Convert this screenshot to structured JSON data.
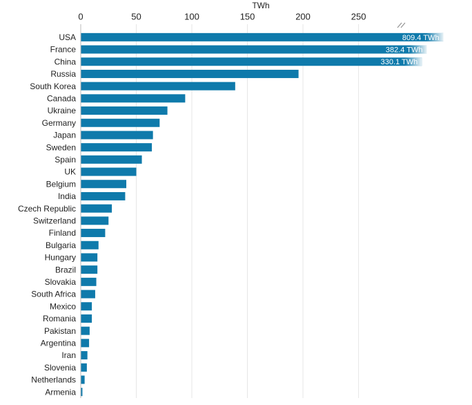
{
  "chart_data": {
    "type": "bar",
    "orientation": "horizontal",
    "xlabel": "TWh",
    "categories": [
      "USA",
      "France",
      "China",
      "Russia",
      "South Korea",
      "Canada",
      "Ukraine",
      "Germany",
      "Japan",
      "Sweden",
      "Spain",
      "UK",
      "Belgium",
      "India",
      "Czech Republic",
      "Switzerland",
      "Finland",
      "Bulgaria",
      "Hungary",
      "Brazil",
      "Slovakia",
      "South Africa",
      "Mexico",
      "Romania",
      "Pakistan",
      "Argentina",
      "Iran",
      "Slovenia",
      "Netherlands",
      "Armenia"
    ],
    "values": [
      809.4,
      382.4,
      330.1,
      196,
      139,
      94,
      78,
      71,
      65,
      64,
      55,
      50,
      41,
      40,
      28,
      25,
      22,
      16,
      15,
      15,
      14,
      13,
      10,
      10,
      8,
      7.5,
      6,
      5.5,
      3.5,
      1.5
    ],
    "value_labels": [
      "809.4 TWh",
      "382.4 TWh",
      "330.1 TWh",
      null,
      null,
      null,
      null,
      null,
      null,
      null,
      null,
      null,
      null,
      null,
      null,
      null,
      null,
      null,
      null,
      null,
      null,
      null,
      null,
      null,
      null,
      null,
      null,
      null,
      null,
      null
    ],
    "color": "#0f7aab",
    "xlim": [
      0,
      290
    ],
    "xticks": [
      0,
      50,
      100,
      150,
      200,
      250
    ],
    "grid": true,
    "axis_break": true
  }
}
